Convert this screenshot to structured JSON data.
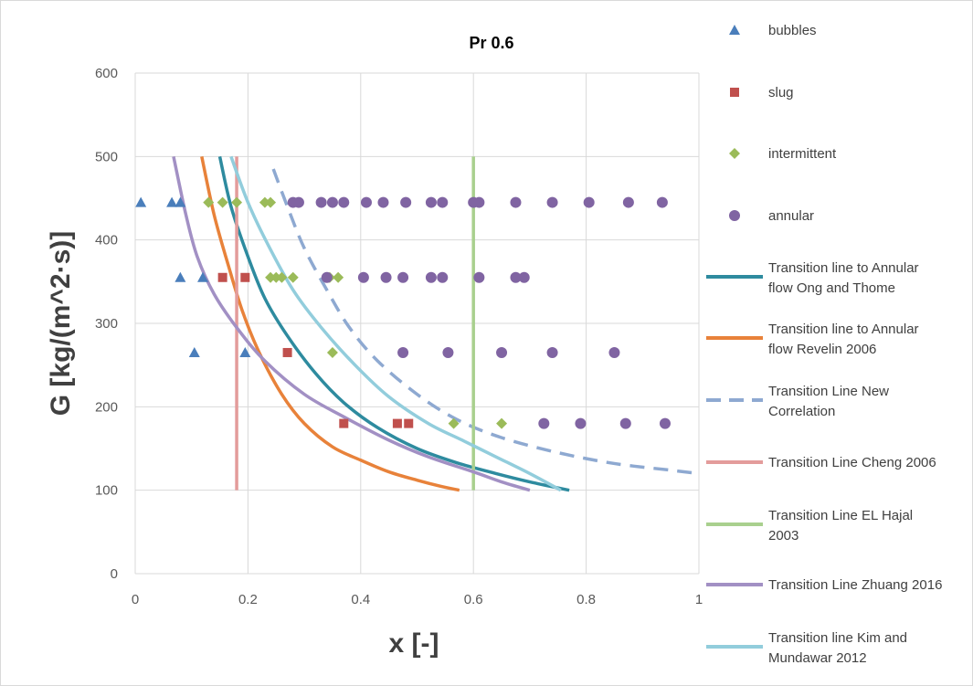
{
  "chart_data": {
    "type": "scatter",
    "title": "Pr 0.6",
    "xlabel": "x [-]",
    "ylabel": "G [kg/(m^2·s)]",
    "xlim": [
      0,
      1
    ],
    "ylim": [
      0,
      600
    ],
    "xticks": [
      "0",
      "0.2",
      "0.4",
      "0.6",
      "0.8",
      "1"
    ],
    "yticks": [
      "0",
      "100",
      "200",
      "300",
      "400",
      "500",
      "600"
    ],
    "grid": "vertical and horizontal major gridlines",
    "legend_position": "right",
    "series": [
      {
        "name": "bubbles",
        "kind": "marker",
        "marker": "triangle",
        "color": "#4a7ebb",
        "points": [
          [
            0.01,
            445
          ],
          [
            0.065,
            445
          ],
          [
            0.08,
            445
          ],
          [
            0.08,
            355
          ],
          [
            0.12,
            355
          ],
          [
            0.105,
            265
          ],
          [
            0.195,
            265
          ]
        ]
      },
      {
        "name": "slug",
        "kind": "marker",
        "marker": "square",
        "color": "#c0504d",
        "points": [
          [
            0.155,
            355
          ],
          [
            0.195,
            355
          ],
          [
            0.27,
            265
          ],
          [
            0.37,
            180
          ],
          [
            0.465,
            180
          ],
          [
            0.485,
            180
          ]
        ]
      },
      {
        "name": "intermittent",
        "kind": "marker",
        "marker": "diamond",
        "color": "#9bbb59",
        "points": [
          [
            0.13,
            445
          ],
          [
            0.155,
            445
          ],
          [
            0.18,
            445
          ],
          [
            0.23,
            445
          ],
          [
            0.24,
            445
          ],
          [
            0.24,
            355
          ],
          [
            0.25,
            355
          ],
          [
            0.26,
            355
          ],
          [
            0.28,
            355
          ],
          [
            0.345,
            355
          ],
          [
            0.36,
            355
          ],
          [
            0.35,
            265
          ],
          [
            0.565,
            180
          ],
          [
            0.65,
            180
          ]
        ]
      },
      {
        "name": "annular",
        "kind": "marker",
        "marker": "circle",
        "color": "#8064a2",
        "points": [
          [
            0.28,
            445
          ],
          [
            0.29,
            445
          ],
          [
            0.33,
            445
          ],
          [
            0.35,
            445
          ],
          [
            0.37,
            445
          ],
          [
            0.41,
            445
          ],
          [
            0.44,
            445
          ],
          [
            0.48,
            445
          ],
          [
            0.525,
            445
          ],
          [
            0.545,
            445
          ],
          [
            0.6,
            445
          ],
          [
            0.61,
            445
          ],
          [
            0.675,
            445
          ],
          [
            0.74,
            445
          ],
          [
            0.805,
            445
          ],
          [
            0.875,
            445
          ],
          [
            0.935,
            445
          ],
          [
            0.34,
            355
          ],
          [
            0.405,
            355
          ],
          [
            0.445,
            355
          ],
          [
            0.475,
            355
          ],
          [
            0.525,
            355
          ],
          [
            0.545,
            355
          ],
          [
            0.61,
            355
          ],
          [
            0.675,
            355
          ],
          [
            0.69,
            355
          ],
          [
            0.475,
            265
          ],
          [
            0.555,
            265
          ],
          [
            0.65,
            265
          ],
          [
            0.74,
            265
          ],
          [
            0.85,
            265
          ],
          [
            0.725,
            180
          ],
          [
            0.79,
            180
          ],
          [
            0.87,
            180
          ],
          [
            0.94,
            180
          ]
        ]
      },
      {
        "name": "Transition line to Annular flow Ong and Thome",
        "kind": "line",
        "color": "#2e8b9f",
        "dash": "",
        "points": [
          [
            0.15,
            500
          ],
          [
            0.17,
            440
          ],
          [
            0.2,
            380
          ],
          [
            0.23,
            330
          ],
          [
            0.27,
            285
          ],
          [
            0.32,
            240
          ],
          [
            0.37,
            205
          ],
          [
            0.43,
            175
          ],
          [
            0.5,
            150
          ],
          [
            0.57,
            133
          ],
          [
            0.64,
            120
          ],
          [
            0.7,
            110
          ],
          [
            0.77,
            100
          ]
        ]
      },
      {
        "name": "Transition line to Annular flow Revelin 2006",
        "kind": "line",
        "color": "#e8823a",
        "dash": "",
        "points": [
          [
            0.118,
            500
          ],
          [
            0.14,
            430
          ],
          [
            0.165,
            370
          ],
          [
            0.19,
            315
          ],
          [
            0.22,
            265
          ],
          [
            0.26,
            215
          ],
          [
            0.3,
            180
          ],
          [
            0.35,
            152
          ],
          [
            0.4,
            136
          ],
          [
            0.45,
            122
          ],
          [
            0.5,
            112
          ],
          [
            0.54,
            105
          ],
          [
            0.575,
            100
          ]
        ]
      },
      {
        "name": "Transition Line New Correlation",
        "kind": "line",
        "color": "#8ea9d1",
        "dash": "16,10",
        "points": [
          [
            0.245,
            485
          ],
          [
            0.27,
            440
          ],
          [
            0.3,
            390
          ],
          [
            0.34,
            340
          ],
          [
            0.38,
            295
          ],
          [
            0.43,
            255
          ],
          [
            0.5,
            215
          ],
          [
            0.57,
            185
          ],
          [
            0.65,
            163
          ],
          [
            0.75,
            145
          ],
          [
            0.85,
            132
          ],
          [
            0.95,
            124
          ],
          [
            1.0,
            120
          ]
        ]
      },
      {
        "name": "Transition Line Cheng 2006",
        "kind": "line",
        "color": "#e39c9b",
        "dash": "",
        "points": [
          [
            0.18,
            500
          ],
          [
            0.18,
            100
          ]
        ]
      },
      {
        "name": "Transition Line EL Hajal 2003",
        "kind": "line",
        "color": "#a9d08e",
        "dash": "",
        "points": [
          [
            0.6,
            500
          ],
          [
            0.6,
            100
          ]
        ]
      },
      {
        "name": "Transition Line Zhuang 2016",
        "kind": "line",
        "color": "#a290c4",
        "dash": "",
        "points": [
          [
            0.068,
            500
          ],
          [
            0.09,
            430
          ],
          [
            0.11,
            380
          ],
          [
            0.14,
            335
          ],
          [
            0.18,
            295
          ],
          [
            0.23,
            255
          ],
          [
            0.3,
            215
          ],
          [
            0.37,
            188
          ],
          [
            0.45,
            160
          ],
          [
            0.52,
            140
          ],
          [
            0.6,
            122
          ],
          [
            0.65,
            110
          ],
          [
            0.7,
            100
          ]
        ]
      },
      {
        "name": "Transition line Kim and Mundawar 2012",
        "kind": "line",
        "color": "#92cddc",
        "dash": "",
        "points": [
          [
            0.17,
            500
          ],
          [
            0.2,
            445
          ],
          [
            0.235,
            395
          ],
          [
            0.28,
            340
          ],
          [
            0.33,
            295
          ],
          [
            0.39,
            250
          ],
          [
            0.45,
            212
          ],
          [
            0.52,
            180
          ],
          [
            0.58,
            160
          ],
          [
            0.64,
            140
          ],
          [
            0.7,
            120
          ],
          [
            0.755,
            100
          ]
        ]
      }
    ]
  }
}
